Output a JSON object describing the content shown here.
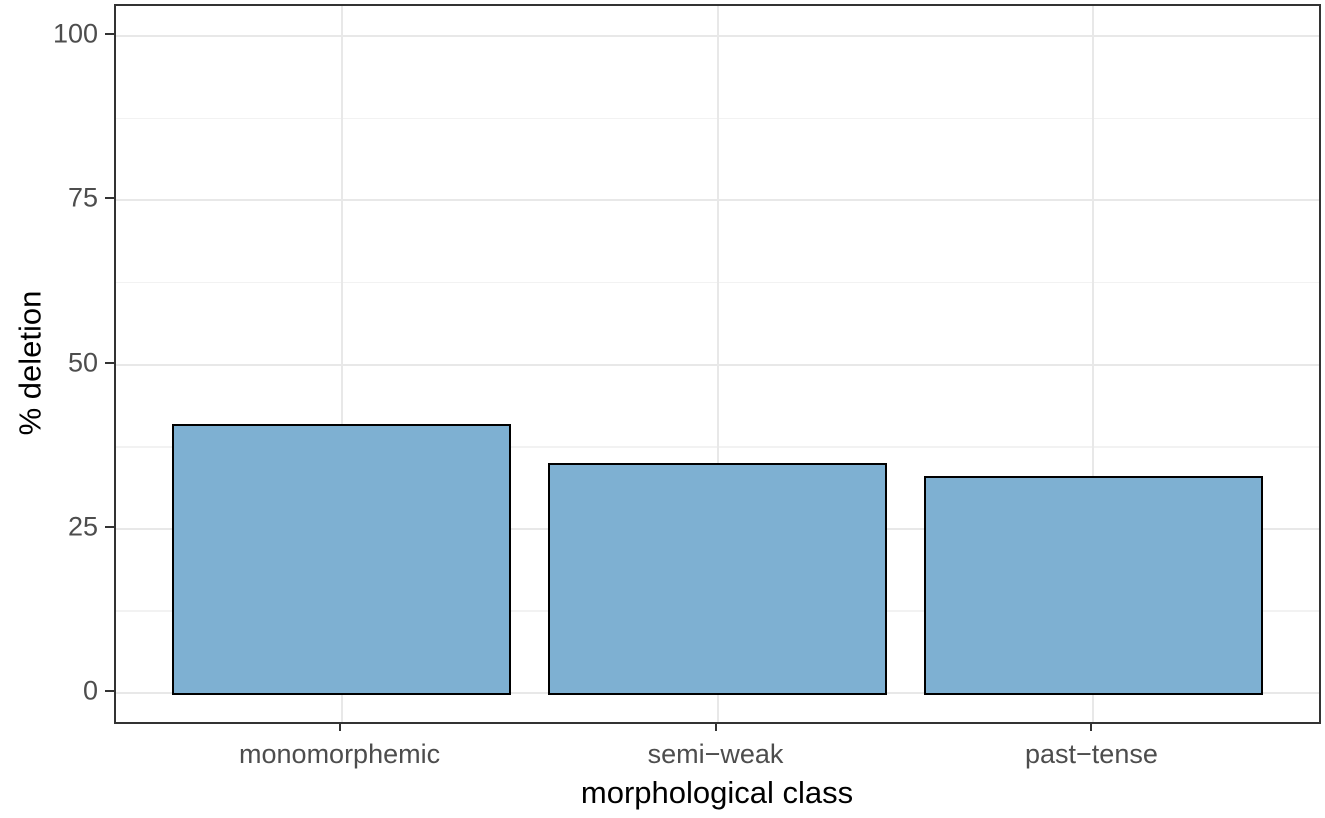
{
  "chart_data": {
    "type": "bar",
    "categories": [
      "monomorphemic",
      "semi−weak",
      "past−tense"
    ],
    "values": [
      41,
      35,
      33
    ],
    "title": "",
    "xlabel": "morphological class",
    "ylabel": "% deletion",
    "ylim": [
      0,
      100
    ],
    "yticks": [
      0,
      25,
      50,
      75,
      100
    ],
    "ytick_labels": [
      "0",
      "25",
      "50",
      "75",
      "100"
    ],
    "bar_width_fraction": 0.9,
    "grid": {
      "horizontal_major": true,
      "horizontal_minor": true,
      "vertical_major_at_categories": true,
      "vertical_minor": false
    },
    "legend": "none",
    "style": {
      "bar_fill": "#7EB0D2",
      "bar_stroke": "#000000",
      "panel_border": "#333333",
      "panel_background": "#FFFFFF",
      "grid_major_color": "#E8E8E8",
      "grid_minor_color": "#F2F2F2",
      "axis_tick_color": "#333333",
      "tick_label_color": "#4D4D4D",
      "axis_title_color": "#000000"
    }
  }
}
